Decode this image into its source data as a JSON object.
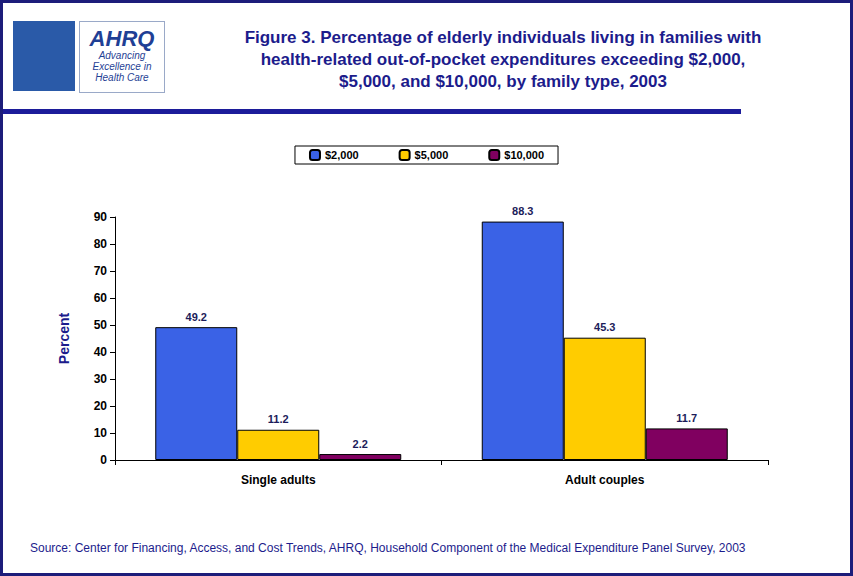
{
  "logo": {
    "name": "AHRQ",
    "tagline": "Advancing\nExcellence in\nHealth Care"
  },
  "chart_data": {
    "type": "bar",
    "title": "Figure 3. Percentage of elderly individuals living in families with\nhealth-related out-of-pocket expenditures exceeding $2,000,\n$5,000, and $10,000, by family type, 2003",
    "categories": [
      "Single adults",
      "Adult couples"
    ],
    "series": [
      {
        "name": "$2,000",
        "color": "#3a62e6",
        "values": [
          49.2,
          88.3
        ]
      },
      {
        "name": "$5,000",
        "color": "#ffcc00",
        "values": [
          11.2,
          45.3
        ]
      },
      {
        "name": "$10,000",
        "color": "#800060",
        "values": [
          2.2,
          11.7
        ]
      }
    ],
    "ylim": [
      0,
      90
    ],
    "yticks": [
      0,
      10,
      20,
      30,
      40,
      50,
      60,
      70,
      80,
      90
    ],
    "y_label": "Percent",
    "grid": false,
    "data_labels": true,
    "legend": "top",
    "source": "Source: Center for Financing, Access, and Cost Trends, AHRQ, Household Component of the Medical Expenditure Panel Survey, 2003"
  }
}
